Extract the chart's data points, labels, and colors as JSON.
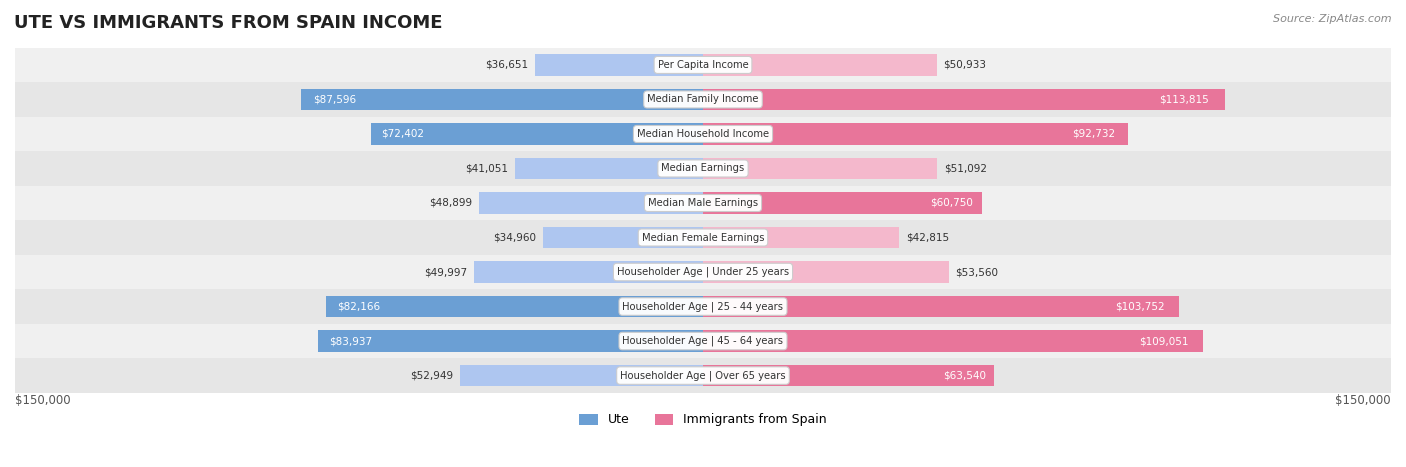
{
  "title": "UTE VS IMMIGRANTS FROM SPAIN INCOME",
  "source": "Source: ZipAtlas.com",
  "categories": [
    "Per Capita Income",
    "Median Family Income",
    "Median Household Income",
    "Median Earnings",
    "Median Male Earnings",
    "Median Female Earnings",
    "Householder Age | Under 25 years",
    "Householder Age | 25 - 44 years",
    "Householder Age | 45 - 64 years",
    "Householder Age | Over 65 years"
  ],
  "ute_values": [
    36651,
    87596,
    72402,
    41051,
    48899,
    34960,
    49997,
    82166,
    83937,
    52949
  ],
  "spain_values": [
    50933,
    113815,
    92732,
    51092,
    60750,
    42815,
    53560,
    103752,
    109051,
    63540
  ],
  "ute_labels": [
    "$36,651",
    "$87,596",
    "$72,402",
    "$41,051",
    "$48,899",
    "$34,960",
    "$49,997",
    "$82,166",
    "$83,937",
    "$52,949"
  ],
  "spain_labels": [
    "$50,933",
    "$113,815",
    "$92,732",
    "$51,092",
    "$60,750",
    "$42,815",
    "$53,560",
    "$103,752",
    "$109,051",
    "$63,540"
  ],
  "max_val": 150000,
  "ute_color_light": "#aec6f0",
  "ute_color_dark": "#6b9fd4",
  "spain_color_light": "#f4b8cc",
  "spain_color_dark": "#e8759a",
  "legend_ute": "Ute",
  "legend_spain": "Immigrants from Spain",
  "x_label_left": "$150,000",
  "x_label_right": "$150,000",
  "large_threshold": 60000
}
